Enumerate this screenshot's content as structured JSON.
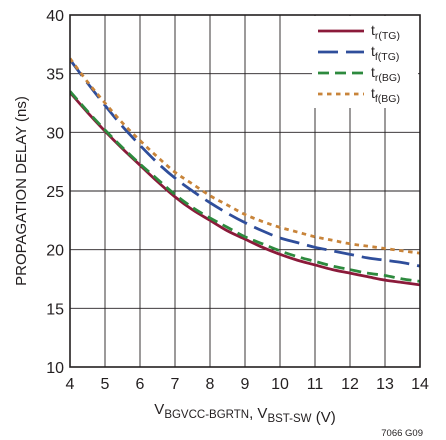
{
  "chart_data": {
    "type": "line",
    "xlabel": {
      "parts": [
        {
          "text": "V",
          "sub": "BGVCC-BGRTN"
        },
        {
          "text": ", V",
          "sub": "BST-SW"
        },
        {
          "text": " (V)",
          "sub": ""
        }
      ]
    },
    "ylabel": "PROPAGATION DELAY (ns)",
    "xlim": [
      4,
      14
    ],
    "ylim": [
      10,
      40
    ],
    "xticks": [
      "4",
      "5",
      "6",
      "7",
      "8",
      "9",
      "10",
      "11",
      "12",
      "13",
      "14"
    ],
    "yticks": [
      "10",
      "15",
      "20",
      "25",
      "30",
      "35",
      "40"
    ],
    "grid": true,
    "legend_position": "top-right",
    "figure_id": "7066 G09",
    "series": [
      {
        "name": "t",
        "name_sub": "r(TG)",
        "color": "#8b1a3a",
        "dash": "solid",
        "x": [
          4,
          4.5,
          5,
          5.5,
          6,
          6.5,
          7,
          7.5,
          8,
          8.5,
          9,
          9.5,
          10,
          10.5,
          11,
          11.5,
          12,
          12.5,
          13,
          13.5,
          14
        ],
        "y": [
          33.4,
          31.7,
          30.1,
          28.6,
          27.2,
          25.8,
          24.5,
          23.4,
          22.5,
          21.6,
          20.9,
          20.2,
          19.6,
          19.1,
          18.7,
          18.3,
          18.0,
          17.7,
          17.4,
          17.2,
          17.0
        ]
      },
      {
        "name": "t",
        "name_sub": "f(TG)",
        "color": "#2f4e9b",
        "dash": "long",
        "x": [
          4,
          4.5,
          5,
          5.5,
          6,
          6.5,
          7,
          7.5,
          8,
          8.5,
          9,
          9.5,
          10,
          10.5,
          11,
          11.5,
          12,
          12.5,
          13,
          13.5,
          14
        ],
        "y": [
          36.2,
          34.2,
          32.3,
          30.5,
          28.9,
          27.4,
          26.1,
          25.0,
          24.0,
          23.1,
          22.3,
          21.6,
          21.0,
          20.6,
          20.2,
          19.9,
          19.6,
          19.3,
          19.1,
          18.9,
          18.6
        ]
      },
      {
        "name": "t",
        "name_sub": "r(BG)",
        "color": "#2d8a3e",
        "dash": "medium",
        "x": [
          4,
          4.5,
          5,
          5.5,
          6,
          6.5,
          7,
          7.5,
          8,
          8.5,
          9,
          9.5,
          10,
          10.5,
          11,
          11.5,
          12,
          12.5,
          13,
          13.5,
          14
        ],
        "y": [
          33.5,
          31.8,
          30.2,
          28.7,
          27.3,
          26.0,
          24.7,
          23.6,
          22.7,
          21.9,
          21.1,
          20.5,
          19.9,
          19.4,
          19.0,
          18.6,
          18.3,
          18.0,
          17.8,
          17.5,
          17.3
        ]
      },
      {
        "name": "t",
        "name_sub": "f(BG)",
        "color": "#c8843a",
        "dash": "dotted",
        "x": [
          4,
          4.5,
          5,
          5.5,
          6,
          6.5,
          7,
          7.5,
          8,
          8.5,
          9,
          9.5,
          10,
          10.5,
          11,
          11.5,
          12,
          12.5,
          13,
          13.5,
          14
        ],
        "y": [
          36.3,
          34.3,
          32.5,
          30.8,
          29.3,
          27.9,
          26.6,
          25.6,
          24.6,
          23.8,
          23.0,
          22.4,
          21.9,
          21.5,
          21.1,
          20.8,
          20.5,
          20.3,
          20.1,
          19.9,
          19.7
        ]
      }
    ]
  }
}
